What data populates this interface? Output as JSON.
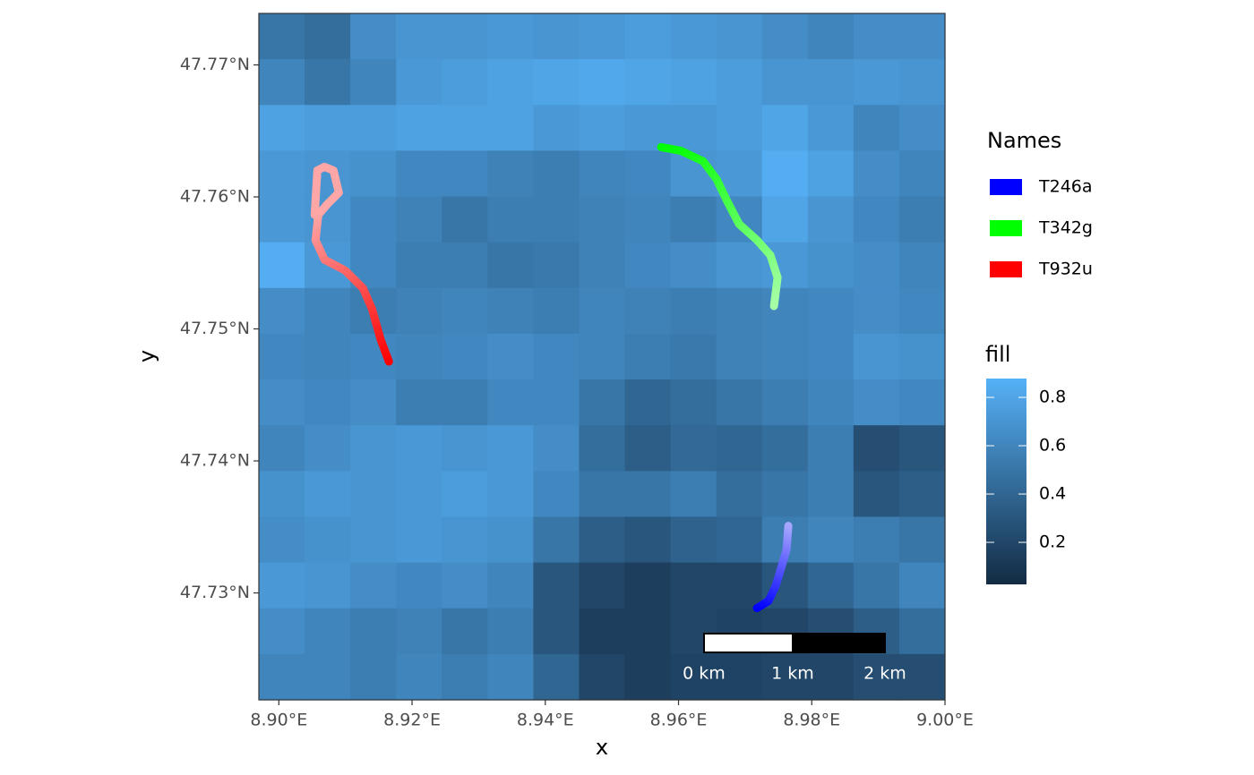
{
  "chart_data": {
    "type": "raster",
    "x_label": "x",
    "y_label": "y",
    "xlim": [
      8.897,
      9.0
    ],
    "ylim": [
      47.7219,
      47.7739
    ],
    "xticks": [
      {
        "value": 8.9,
        "label": "8.90°E"
      },
      {
        "value": 8.92,
        "label": "8.92°E"
      },
      {
        "value": 8.94,
        "label": "8.94°E"
      },
      {
        "value": 8.96,
        "label": "8.96°E"
      },
      {
        "value": 8.98,
        "label": "8.98°E"
      },
      {
        "value": 9.0,
        "label": "9.00°E"
      }
    ],
    "yticks": [
      {
        "value": 47.73,
        "label": "47.73°N"
      },
      {
        "value": 47.74,
        "label": "47.74°N"
      },
      {
        "value": 47.75,
        "label": "47.75°N"
      },
      {
        "value": 47.76,
        "label": "47.76°N"
      },
      {
        "value": 47.77,
        "label": "47.77°N"
      }
    ],
    "raster": {
      "legend_title": "fill",
      "low_color": "#132b43",
      "high_color": "#56b1f7",
      "lim": [
        0.026,
        0.878
      ],
      "ticks": [
        0.2,
        0.4,
        0.6,
        0.8
      ],
      "values": [
        [
          0.5,
          0.45,
          0.65,
          0.7,
          0.7,
          0.72,
          0.7,
          0.72,
          0.75,
          0.72,
          0.7,
          0.65,
          0.6,
          0.65,
          0.65
        ],
        [
          0.6,
          0.5,
          0.6,
          0.72,
          0.75,
          0.78,
          0.8,
          0.82,
          0.8,
          0.78,
          0.75,
          0.7,
          0.7,
          0.72,
          0.7
        ],
        [
          0.78,
          0.75,
          0.75,
          0.78,
          0.78,
          0.78,
          0.72,
          0.75,
          0.72,
          0.72,
          0.75,
          0.8,
          0.72,
          0.6,
          0.65
        ],
        [
          0.72,
          0.7,
          0.68,
          0.62,
          0.62,
          0.58,
          0.55,
          0.6,
          0.62,
          0.7,
          0.72,
          0.85,
          0.78,
          0.65,
          0.6
        ],
        [
          0.72,
          0.7,
          0.62,
          0.58,
          0.5,
          0.55,
          0.55,
          0.58,
          0.6,
          0.55,
          0.62,
          0.8,
          0.7,
          0.62,
          0.55
        ],
        [
          0.85,
          0.72,
          0.62,
          0.55,
          0.55,
          0.5,
          0.52,
          0.58,
          0.62,
          0.65,
          0.7,
          0.72,
          0.68,
          0.65,
          0.6
        ],
        [
          0.65,
          0.6,
          0.55,
          0.58,
          0.6,
          0.58,
          0.55,
          0.6,
          0.58,
          0.55,
          0.58,
          0.6,
          0.62,
          0.65,
          0.62
        ],
        [
          0.62,
          0.6,
          0.62,
          0.6,
          0.62,
          0.65,
          0.62,
          0.6,
          0.55,
          0.52,
          0.58,
          0.6,
          0.62,
          0.7,
          0.68
        ],
        [
          0.65,
          0.62,
          0.65,
          0.55,
          0.55,
          0.62,
          0.62,
          0.5,
          0.4,
          0.45,
          0.5,
          0.55,
          0.6,
          0.65,
          0.62
        ],
        [
          0.6,
          0.65,
          0.7,
          0.72,
          0.7,
          0.72,
          0.65,
          0.45,
          0.35,
          0.42,
          0.4,
          0.45,
          0.55,
          0.25,
          0.3
        ],
        [
          0.68,
          0.72,
          0.7,
          0.72,
          0.75,
          0.72,
          0.62,
          0.5,
          0.5,
          0.55,
          0.45,
          0.5,
          0.55,
          0.3,
          0.35
        ],
        [
          0.65,
          0.68,
          0.7,
          0.72,
          0.7,
          0.68,
          0.5,
          0.35,
          0.3,
          0.38,
          0.4,
          0.55,
          0.6,
          0.55,
          0.5
        ],
        [
          0.72,
          0.7,
          0.65,
          0.62,
          0.65,
          0.6,
          0.3,
          0.2,
          0.15,
          0.2,
          0.2,
          0.3,
          0.4,
          0.5,
          0.6
        ],
        [
          0.65,
          0.6,
          0.55,
          0.58,
          0.5,
          0.55,
          0.3,
          0.15,
          0.15,
          0.2,
          0.18,
          0.2,
          0.25,
          0.35,
          0.45
        ],
        [
          0.6,
          0.6,
          0.55,
          0.6,
          0.55,
          0.6,
          0.4,
          0.2,
          0.15,
          0.18,
          0.18,
          0.2,
          0.2,
          0.25,
          0.25
        ]
      ]
    },
    "legend_title": "Names",
    "series": [
      {
        "name": "T246a",
        "color": "#0000ff",
        "x": [
          8.97177,
          8.97352,
          8.9746,
          8.9754,
          8.97621,
          8.97648
        ],
        "y": [
          47.72885,
          47.72939,
          47.73054,
          47.73189,
          47.73325,
          47.73508
        ]
      },
      {
        "name": "T342g",
        "color": "#00ff00",
        "x": [
          8.95739,
          8.96035,
          8.96371,
          8.96573,
          8.96734,
          8.96909,
          8.97177,
          8.97379,
          8.97487,
          8.97433
        ],
        "y": [
          47.76377,
          47.7635,
          47.76269,
          47.76134,
          47.75964,
          47.75795,
          47.75673,
          47.75558,
          47.75389,
          47.75173
        ]
      },
      {
        "name": "T932u",
        "color": "#ff0000",
        "x": [
          8.91653,
          8.91532,
          8.91398,
          8.91263,
          8.90995,
          8.90685,
          8.90551,
          8.90591,
          8.90726,
          8.90901,
          8.9082,
          8.90685,
          8.90578,
          8.90538
        ],
        "y": [
          47.74753,
          47.74915,
          47.75152,
          47.75308,
          47.75443,
          47.75524,
          47.75673,
          47.75863,
          47.75944,
          47.76032,
          47.76201,
          47.76228,
          47.76201,
          47.75863
        ]
      }
    ],
    "scalebar": {
      "labels": [
        "0 km",
        "1 km",
        "2 km"
      ]
    }
  }
}
